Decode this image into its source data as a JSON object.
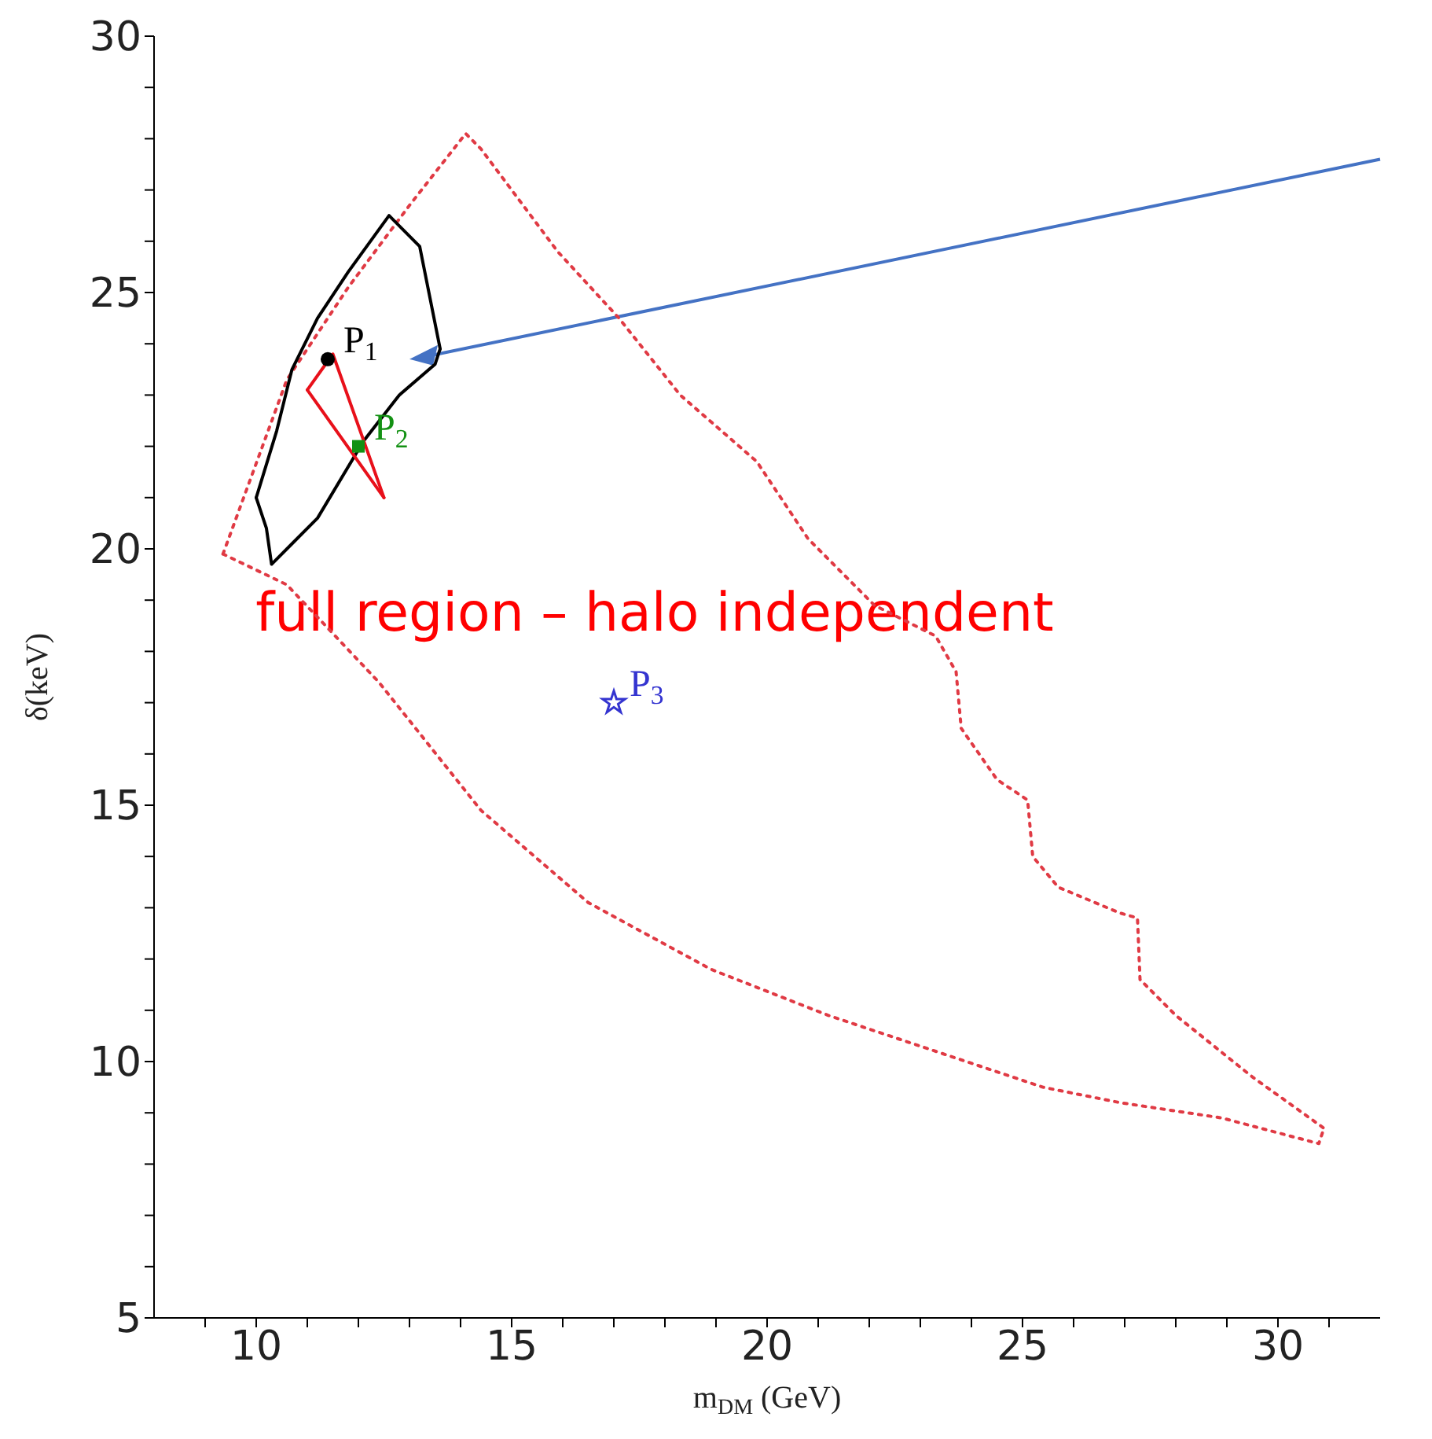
{
  "chart_data": {
    "type": "line",
    "xlabel": "m$_{DM}$ (GeV)",
    "ylabel": "δ(keV)",
    "xlim": [
      8,
      32
    ],
    "ylim": [
      5,
      30
    ],
    "xticks": [
      {
        "value": 9,
        "label": null
      },
      10,
      {
        "value": 11,
        "label": null
      },
      {
        "value": 12,
        "label": null
      },
      {
        "value": 13,
        "label": null
      },
      {
        "value": 14,
        "label": null
      },
      15,
      {
        "value": 16,
        "label": null
      },
      {
        "value": 17,
        "label": null
      },
      {
        "value": 18,
        "label": null
      },
      {
        "value": 19,
        "label": null
      },
      20,
      {
        "value": 21,
        "label": null
      },
      {
        "value": 22,
        "label": null
      },
      {
        "value": 23,
        "label": null
      },
      {
        "value": 24,
        "label": null
      },
      25,
      {
        "value": 26,
        "label": null
      },
      {
        "value": 27,
        "label": null
      },
      {
        "value": 28,
        "label": null
      },
      {
        "value": 29,
        "label": null
      },
      30,
      {
        "value": 31,
        "label": null
      }
    ],
    "yticks": [
      5,
      {
        "value": 6,
        "label": null
      },
      {
        "value": 7,
        "label": null
      },
      {
        "value": 8,
        "label": null
      },
      {
        "value": 9,
        "label": null
      },
      10,
      {
        "value": 11,
        "label": null
      },
      {
        "value": 12,
        "label": null
      },
      {
        "value": 13,
        "label": null
      },
      {
        "value": 14,
        "label": null
      },
      15,
      {
        "value": 16,
        "label": null
      },
      {
        "value": 17,
        "label": null
      },
      {
        "value": 18,
        "label": null
      },
      {
        "value": 19,
        "label": null
      },
      20,
      {
        "value": 21,
        "label": null
      },
      {
        "value": 22,
        "label": null
      },
      {
        "value": 23,
        "label": null
      },
      {
        "value": 24,
        "label": null
      },
      25,
      {
        "value": 26,
        "label": null
      },
      {
        "value": 27,
        "label": null
      },
      {
        "value": 28,
        "label": null
      },
      {
        "value": 29,
        "label": null
      },
      30
    ],
    "series": [
      {
        "color": "#e03a44",
        "line_style": "dotted",
        "marker": "none",
        "x": [
          9.35,
          10.6,
          11.8,
          13.0,
          14.1,
          14.4,
          15.9,
          17.1,
          18.3,
          19.8,
          20.8,
          22.1,
          23.3,
          23.7,
          23.8,
          24.5,
          25.1,
          25.2,
          25.7,
          26.9,
          27.25,
          27.3,
          28.0,
          29.5,
          30.9
        ],
        "values": [
          19.9,
          23.3,
          25.1,
          26.7,
          28.1,
          27.8,
          25.8,
          24.5,
          23.0,
          21.7,
          20.2,
          18.9,
          18.3,
          17.6,
          16.5,
          15.5,
          15.1,
          14.0,
          13.4,
          12.9,
          12.8,
          11.6,
          10.9,
          9.7,
          8.7
        ]
      },
      {
        "color": "#e03a44",
        "line_style": "dotted",
        "marker": "none",
        "x": [
          9.35,
          10.6,
          12.4,
          14.4,
          16.5,
          18.9,
          21.2,
          23.0,
          25.4,
          26.9,
          28.9,
          30.8,
          30.9
        ],
        "values": [
          19.9,
          19.3,
          17.4,
          14.9,
          13.1,
          11.8,
          10.9,
          10.3,
          9.5,
          9.2,
          8.9,
          8.4,
          8.7
        ]
      },
      {
        "color": "#000000",
        "line_style": "solid",
        "marker": "none",
        "x": [
          10.0,
          10.4,
          10.7,
          11.2,
          11.8,
          12.6,
          13.2,
          13.6
        ],
        "values": [
          21.0,
          22.3,
          23.5,
          24.5,
          25.4,
          26.5,
          25.9,
          23.9
        ]
      },
      {
        "color": "#000000",
        "line_style": "solid",
        "marker": "none",
        "x": [
          10.0,
          10.2,
          10.3,
          10.7,
          11.2,
          12.1,
          12.8,
          13.5,
          13.6
        ],
        "values": [
          21.0,
          20.4,
          19.7,
          20.1,
          20.6,
          22.1,
          23.0,
          23.6,
          23.9
        ]
      },
      {
        "color": "#e8101a",
        "line_style": "solid",
        "marker": "none",
        "x": [
          11.0,
          11.5,
          12.5
        ],
        "values": [
          23.1,
          23.8,
          21.0
        ]
      },
      {
        "color": "#e8101a",
        "line_style": "solid",
        "marker": "none",
        "x": [
          11.0,
          12.5
        ],
        "values": [
          23.1,
          21.0
        ]
      },
      {
        "type": "scatter",
        "name": "P$_{1}$",
        "color": "#000000",
        "marker": "circle",
        "x": [
          11.4
        ],
        "values": [
          23.7
        ]
      },
      {
        "type": "scatter",
        "name": "P$_{2}$",
        "color": "#139113",
        "marker": "square",
        "x": [
          12.0
        ],
        "values": [
          22.0
        ]
      },
      {
        "type": "scatter",
        "name": "P$_{3}$",
        "color": "#3434d0",
        "marker": "star",
        "x": [
          17.0
        ],
        "values": [
          17.0
        ]
      }
    ],
    "annotations": [
      "full region – halo independent"
    ]
  }
}
